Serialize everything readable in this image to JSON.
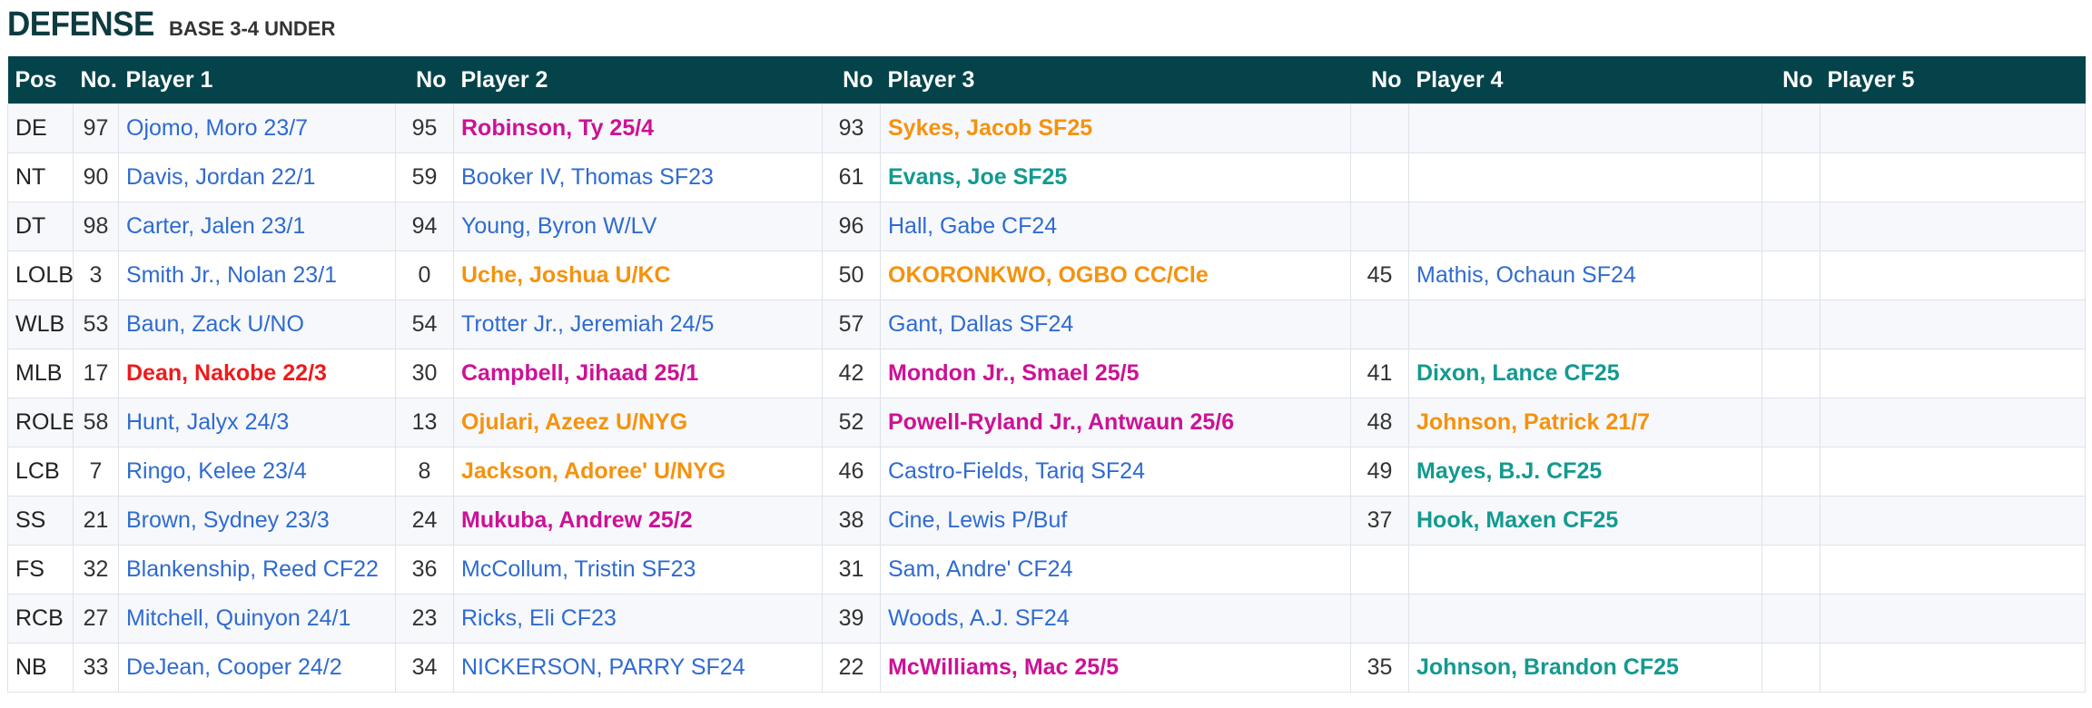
{
  "heading": {
    "title": "DEFENSE",
    "subtitle": "BASE 3-4 UNDER"
  },
  "colors": {
    "header_bg": "#04434a",
    "title": "#0e3b40",
    "blue": "#2f6bd0",
    "red": "#ee1b1b",
    "magenta": "#cc1296",
    "orange": "#f5920e",
    "teal": "#139a90"
  },
  "table": {
    "columns": [
      "Pos",
      "No.",
      "Player 1",
      "No",
      "Player 2",
      "No",
      "Player 3",
      "No",
      "Player 4",
      "No",
      "Player 5"
    ],
    "rows": [
      {
        "pos": "DE",
        "players": [
          {
            "no": "97",
            "name": "Ojomo, Moro 23/7",
            "style": "blue"
          },
          {
            "no": "95",
            "name": "Robinson, Ty 25/4",
            "style": "magenta"
          },
          {
            "no": "93",
            "name": "Sykes, Jacob SF25",
            "style": "orange"
          },
          {
            "no": "",
            "name": "",
            "style": "blue"
          },
          {
            "no": "",
            "name": "",
            "style": "blue"
          }
        ]
      },
      {
        "pos": "NT",
        "players": [
          {
            "no": "90",
            "name": "Davis, Jordan 22/1",
            "style": "blue"
          },
          {
            "no": "59",
            "name": "Booker IV, Thomas SF23",
            "style": "blue"
          },
          {
            "no": "61",
            "name": "Evans, Joe SF25",
            "style": "teal"
          },
          {
            "no": "",
            "name": "",
            "style": "blue"
          },
          {
            "no": "",
            "name": "",
            "style": "blue"
          }
        ]
      },
      {
        "pos": "DT",
        "players": [
          {
            "no": "98",
            "name": "Carter, Jalen 23/1",
            "style": "blue"
          },
          {
            "no": "94",
            "name": "Young, Byron W/LV",
            "style": "blue"
          },
          {
            "no": "96",
            "name": "Hall, Gabe CF24",
            "style": "blue"
          },
          {
            "no": "",
            "name": "",
            "style": "blue"
          },
          {
            "no": "",
            "name": "",
            "style": "blue"
          }
        ]
      },
      {
        "pos": "LOLB",
        "players": [
          {
            "no": "3",
            "name": "Smith Jr., Nolan 23/1",
            "style": "blue"
          },
          {
            "no": "0",
            "name": "Uche, Joshua U/KC",
            "style": "orange"
          },
          {
            "no": "50",
            "name": "OKORONKWO, OGBO CC/Cle",
            "style": "orange"
          },
          {
            "no": "45",
            "name": "Mathis, Ochaun SF24",
            "style": "blue"
          },
          {
            "no": "",
            "name": "",
            "style": "blue"
          }
        ]
      },
      {
        "pos": "WLB",
        "players": [
          {
            "no": "53",
            "name": "Baun, Zack U/NO",
            "style": "blue"
          },
          {
            "no": "54",
            "name": "Trotter Jr., Jeremiah 24/5",
            "style": "blue"
          },
          {
            "no": "57",
            "name": "Gant, Dallas SF24",
            "style": "blue"
          },
          {
            "no": "",
            "name": "",
            "style": "blue"
          },
          {
            "no": "",
            "name": "",
            "style": "blue"
          }
        ]
      },
      {
        "pos": "MLB",
        "players": [
          {
            "no": "17",
            "name": "Dean, Nakobe 22/3",
            "style": "red"
          },
          {
            "no": "30",
            "name": "Campbell, Jihaad 25/1",
            "style": "magenta"
          },
          {
            "no": "42",
            "name": "Mondon Jr., Smael 25/5",
            "style": "magenta"
          },
          {
            "no": "41",
            "name": "Dixon, Lance CF25",
            "style": "teal"
          },
          {
            "no": "",
            "name": "",
            "style": "blue"
          }
        ]
      },
      {
        "pos": "ROLB",
        "players": [
          {
            "no": "58",
            "name": "Hunt, Jalyx 24/3",
            "style": "blue"
          },
          {
            "no": "13",
            "name": "Ojulari, Azeez U/NYG",
            "style": "orange"
          },
          {
            "no": "52",
            "name": "Powell-Ryland Jr., Antwaun 25/6",
            "style": "magenta"
          },
          {
            "no": "48",
            "name": "Johnson, Patrick 21/7",
            "style": "orange"
          },
          {
            "no": "",
            "name": "",
            "style": "blue"
          }
        ]
      },
      {
        "pos": "LCB",
        "players": [
          {
            "no": "7",
            "name": "Ringo, Kelee 23/4",
            "style": "blue"
          },
          {
            "no": "8",
            "name": "Jackson, Adoree' U/NYG",
            "style": "orange"
          },
          {
            "no": "46",
            "name": "Castro-Fields, Tariq SF24",
            "style": "blue"
          },
          {
            "no": "49",
            "name": "Mayes, B.J. CF25",
            "style": "teal"
          },
          {
            "no": "",
            "name": "",
            "style": "blue"
          }
        ]
      },
      {
        "pos": "SS",
        "players": [
          {
            "no": "21",
            "name": "Brown, Sydney 23/3",
            "style": "blue"
          },
          {
            "no": "24",
            "name": "Mukuba, Andrew 25/2",
            "style": "magenta"
          },
          {
            "no": "38",
            "name": "Cine, Lewis P/Buf",
            "style": "blue"
          },
          {
            "no": "37",
            "name": "Hook, Maxen CF25",
            "style": "teal"
          },
          {
            "no": "",
            "name": "",
            "style": "blue"
          }
        ]
      },
      {
        "pos": "FS",
        "players": [
          {
            "no": "32",
            "name": "Blankenship, Reed CF22",
            "style": "blue"
          },
          {
            "no": "36",
            "name": "McCollum, Tristin SF23",
            "style": "blue"
          },
          {
            "no": "31",
            "name": "Sam, Andre' CF24",
            "style": "blue"
          },
          {
            "no": "",
            "name": "",
            "style": "blue"
          },
          {
            "no": "",
            "name": "",
            "style": "blue"
          }
        ]
      },
      {
        "pos": "RCB",
        "players": [
          {
            "no": "27",
            "name": "Mitchell, Quinyon 24/1",
            "style": "blue"
          },
          {
            "no": "23",
            "name": "Ricks, Eli CF23",
            "style": "blue"
          },
          {
            "no": "39",
            "name": "Woods, A.J. SF24",
            "style": "blue"
          },
          {
            "no": "",
            "name": "",
            "style": "blue"
          },
          {
            "no": "",
            "name": "",
            "style": "blue"
          }
        ]
      },
      {
        "pos": "NB",
        "players": [
          {
            "no": "33",
            "name": "DeJean, Cooper 24/2",
            "style": "blue"
          },
          {
            "no": "34",
            "name": "NICKERSON, PARRY SF24",
            "style": "blue"
          },
          {
            "no": "22",
            "name": "McWilliams, Mac 25/5",
            "style": "magenta"
          },
          {
            "no": "35",
            "name": "Johnson, Brandon CF25",
            "style": "teal"
          },
          {
            "no": "",
            "name": "",
            "style": "blue"
          }
        ]
      }
    ]
  }
}
